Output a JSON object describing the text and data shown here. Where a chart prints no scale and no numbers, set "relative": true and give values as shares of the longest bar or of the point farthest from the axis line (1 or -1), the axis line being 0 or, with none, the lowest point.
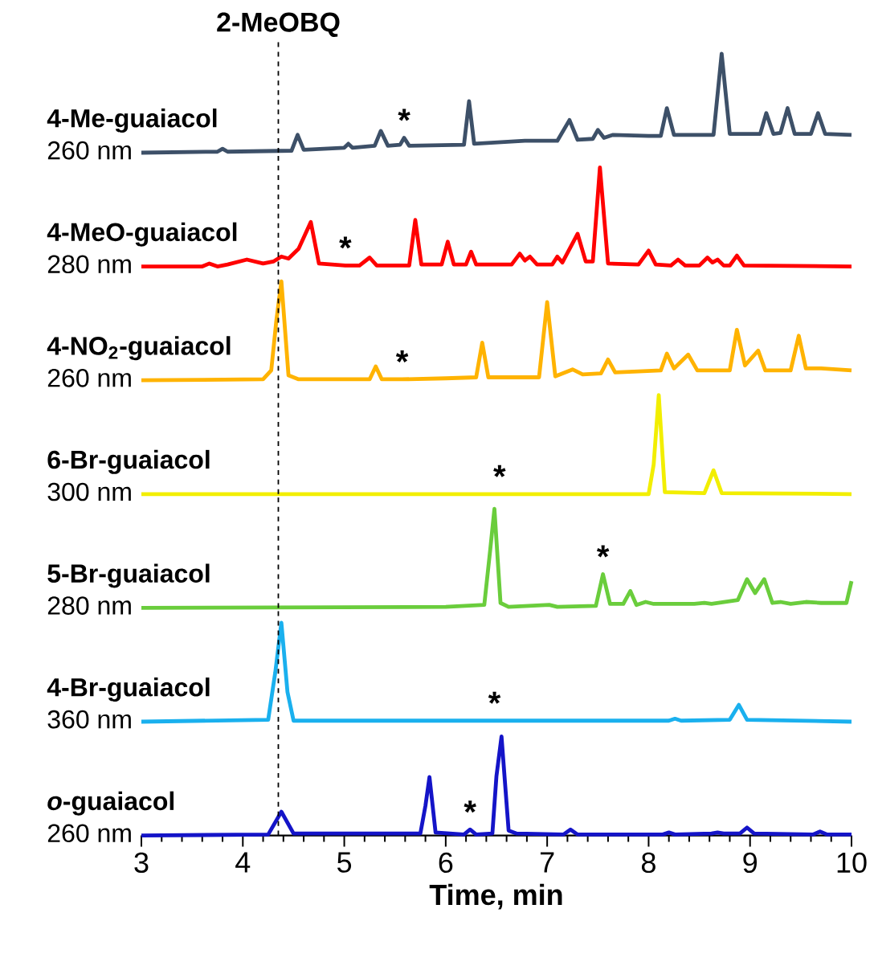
{
  "chart_data": [
    {
      "type": "line",
      "title": "4-Me-guaiacol",
      "subtitle": "260 nm",
      "relative": true,
      "color": "#3d5068",
      "xlim": [
        3,
        10
      ],
      "tick_labels": false,
      "x": [
        3.0,
        3.75,
        3.8,
        3.85,
        4.48,
        4.54,
        4.6,
        5.0,
        5.04,
        5.08,
        5.3,
        5.36,
        5.43,
        5.55,
        5.59,
        5.64,
        6.18,
        6.23,
        6.28,
        6.78,
        7.1,
        7.22,
        7.3,
        7.45,
        7.5,
        7.56,
        7.65,
        8.0,
        8.12,
        8.18,
        8.25,
        8.64,
        8.72,
        8.8,
        9.1,
        9.16,
        9.23,
        9.3,
        9.37,
        9.44,
        9.6,
        9.67,
        9.74,
        10.0
      ],
      "values": [
        0,
        0.01,
        0.04,
        0.01,
        0.02,
        0.18,
        0.03,
        0.05,
        0.09,
        0.05,
        0.07,
        0.22,
        0.07,
        0.08,
        0.15,
        0.07,
        0.08,
        0.52,
        0.09,
        0.12,
        0.12,
        0.33,
        0.13,
        0.14,
        0.23,
        0.15,
        0.18,
        0.17,
        0.17,
        0.45,
        0.18,
        0.18,
        1.0,
        0.19,
        0.19,
        0.4,
        0.19,
        0.2,
        0.45,
        0.19,
        0.19,
        0.4,
        0.19,
        0.18
      ],
      "annotations": [
        {
          "text": "*",
          "x": 5.59,
          "y": 0.15
        }
      ],
      "ref_lines": [
        {
          "axis": "x",
          "value": 4.35,
          "label": "2-MeOBQ"
        }
      ]
    },
    {
      "type": "line",
      "title": "4-MeO-guaiacol",
      "subtitle": "280 nm",
      "relative": true,
      "color": "#ff0000",
      "xlim": [
        3,
        10
      ],
      "tick_labels": false,
      "x": [
        3.0,
        3.6,
        3.67,
        3.75,
        3.85,
        4.04,
        4.2,
        4.3,
        4.38,
        4.45,
        4.55,
        4.67,
        4.75,
        5.01,
        5.15,
        5.25,
        5.32,
        5.64,
        5.7,
        5.76,
        5.96,
        6.02,
        6.08,
        6.2,
        6.25,
        6.3,
        6.65,
        6.73,
        6.78,
        6.83,
        6.9,
        7.05,
        7.1,
        7.15,
        7.3,
        7.38,
        7.45,
        7.52,
        7.6,
        7.9,
        8.0,
        8.07,
        8.22,
        8.29,
        8.36,
        8.5,
        8.58,
        8.63,
        8.68,
        8.74,
        8.8,
        8.87,
        8.94,
        10.0
      ],
      "values": [
        0,
        0,
        0.03,
        0,
        0.02,
        0.07,
        0.03,
        0.05,
        0.1,
        0.08,
        0.18,
        0.45,
        0.03,
        0.01,
        0.01,
        0.09,
        0.01,
        0.01,
        0.47,
        0.02,
        0.02,
        0.25,
        0.02,
        0.02,
        0.15,
        0.02,
        0.02,
        0.13,
        0.06,
        0.1,
        0.02,
        0.02,
        0.1,
        0.04,
        0.33,
        0.05,
        0.05,
        1.0,
        0.03,
        0.02,
        0.16,
        0.02,
        0.01,
        0.07,
        0.01,
        0.01,
        0.09,
        0.04,
        0.07,
        0.01,
        0.01,
        0.11,
        0.01,
        0
      ],
      "annotations": [
        {
          "text": "*",
          "x": 5.01,
          "y": 0.01
        }
      ],
      "ref_lines": [
        {
          "axis": "x",
          "value": 4.35
        }
      ]
    },
    {
      "type": "line",
      "title": "4-NO$_{2}$-guaiacol",
      "subtitle": "260 nm",
      "relative": true,
      "color": "#ffb300",
      "xlim": [
        3,
        10
      ],
      "tick_labels": false,
      "x": [
        3.0,
        4.2,
        4.28,
        4.33,
        4.38,
        4.45,
        4.55,
        5.25,
        5.31,
        5.37,
        5.57,
        6.0,
        6.3,
        6.36,
        6.42,
        6.92,
        7.0,
        7.08,
        7.25,
        7.35,
        7.53,
        7.6,
        7.67,
        7.9,
        8.12,
        8.18,
        8.25,
        8.39,
        8.48,
        8.8,
        8.87,
        8.95,
        9.08,
        9.15,
        9.4,
        9.48,
        9.55,
        9.7,
        10.0
      ],
      "values": [
        0,
        0.01,
        0.1,
        0.6,
        1.0,
        0.05,
        0.01,
        0.01,
        0.14,
        0.01,
        0.01,
        0.02,
        0.03,
        0.38,
        0.03,
        0.03,
        0.79,
        0.04,
        0.11,
        0.06,
        0.07,
        0.21,
        0.08,
        0.09,
        0.1,
        0.27,
        0.12,
        0.26,
        0.1,
        0.1,
        0.51,
        0.15,
        0.3,
        0.1,
        0.1,
        0.45,
        0.12,
        0.12,
        0.1
      ],
      "annotations": [
        {
          "text": "*",
          "x": 5.57,
          "y": 0.01
        }
      ],
      "ref_lines": [
        {
          "axis": "x",
          "value": 4.35
        }
      ]
    },
    {
      "type": "line",
      "title": "6-Br-guaiacol",
      "subtitle": "300 nm",
      "relative": true,
      "color": "#f2ee00",
      "xlim": [
        3,
        10
      ],
      "tick_labels": false,
      "x": [
        3.0,
        6.53,
        8.0,
        8.05,
        8.1,
        8.16,
        8.55,
        8.64,
        8.72,
        10.0
      ],
      "values": [
        0,
        0,
        0,
        0.3,
        1.0,
        0.02,
        0.01,
        0.24,
        0.01,
        0
      ],
      "annotations": [
        {
          "text": "*",
          "x": 6.53,
          "y": 0
        }
      ],
      "ref_lines": [
        {
          "axis": "x",
          "value": 4.35
        }
      ]
    },
    {
      "type": "line",
      "title": "5-Br-guaiacol",
      "subtitle": "280 nm",
      "relative": true,
      "color": "#6acd3c",
      "xlim": [
        3,
        10
      ],
      "tick_labels": false,
      "x": [
        3.0,
        6.0,
        6.38,
        6.44,
        6.48,
        6.54,
        6.62,
        7.02,
        7.1,
        7.48,
        7.55,
        7.62,
        7.75,
        7.82,
        7.88,
        7.97,
        8.05,
        8.45,
        8.55,
        8.62,
        8.88,
        8.97,
        9.05,
        9.14,
        9.22,
        9.3,
        9.4,
        9.55,
        9.7,
        9.95,
        10.0
      ],
      "values": [
        0,
        0.01,
        0.03,
        0.6,
        1.0,
        0.05,
        0.01,
        0.03,
        0.01,
        0.02,
        0.34,
        0.04,
        0.04,
        0.17,
        0.03,
        0.06,
        0.04,
        0.04,
        0.05,
        0.04,
        0.08,
        0.29,
        0.15,
        0.29,
        0.05,
        0.06,
        0.04,
        0.06,
        0.05,
        0.05,
        0.27
      ],
      "annotations": [
        {
          "text": "*",
          "x": 7.55,
          "y": 0.34
        }
      ],
      "ref_lines": [
        {
          "axis": "x",
          "value": 4.35
        }
      ]
    },
    {
      "type": "line",
      "title": "4-Br-guaiacol",
      "subtitle": "360 nm",
      "relative": true,
      "color": "#1ab0ee",
      "xlim": [
        3,
        10
      ],
      "tick_labels": false,
      "x": [
        3.0,
        4.25,
        4.32,
        4.38,
        4.44,
        4.5,
        6.48,
        8.2,
        8.26,
        8.32,
        8.8,
        8.89,
        8.97,
        10.0
      ],
      "values": [
        0,
        0.02,
        0.5,
        1.0,
        0.3,
        0.01,
        0.01,
        0.01,
        0.03,
        0.01,
        0.02,
        0.17,
        0.02,
        0
      ],
      "annotations": [
        {
          "text": "*",
          "x": 6.48,
          "y": 0.01
        }
      ],
      "ref_lines": [
        {
          "axis": "x",
          "value": 4.35
        }
      ]
    },
    {
      "type": "line",
      "title": "*o*-guaiacol",
      "subtitle": "260 nm",
      "relative": true,
      "color": "#1414c8",
      "xlim": [
        3,
        10
      ],
      "tick_labels": "x",
      "xticks": [
        3,
        4,
        5,
        6,
        7,
        8,
        9,
        10
      ],
      "xlabel": "Time, min",
      "x": [
        3.0,
        4.25,
        4.38,
        4.5,
        5.75,
        5.8,
        5.84,
        5.9,
        6.18,
        6.24,
        6.3,
        6.46,
        6.5,
        6.55,
        6.62,
        6.7,
        7.16,
        7.23,
        7.3,
        8.14,
        8.2,
        8.26,
        8.62,
        8.68,
        8.74,
        8.9,
        8.97,
        9.04,
        9.62,
        9.69,
        9.76,
        10.0
      ],
      "values": [
        0,
        0.01,
        0.24,
        0.02,
        0.02,
        0.3,
        0.59,
        0.03,
        0.01,
        0.06,
        0.01,
        0.02,
        0.6,
        1.0,
        0.05,
        0.02,
        0.01,
        0.06,
        0.01,
        0.01,
        0.03,
        0.01,
        0.02,
        0.03,
        0.02,
        0.02,
        0.08,
        0.02,
        0.01,
        0.04,
        0.01,
        0.01
      ],
      "annotations": [
        {
          "text": "*",
          "x": 6.24,
          "y": 0.06
        }
      ],
      "ref_lines": [
        {
          "axis": "x",
          "value": 4.35
        }
      ]
    }
  ]
}
